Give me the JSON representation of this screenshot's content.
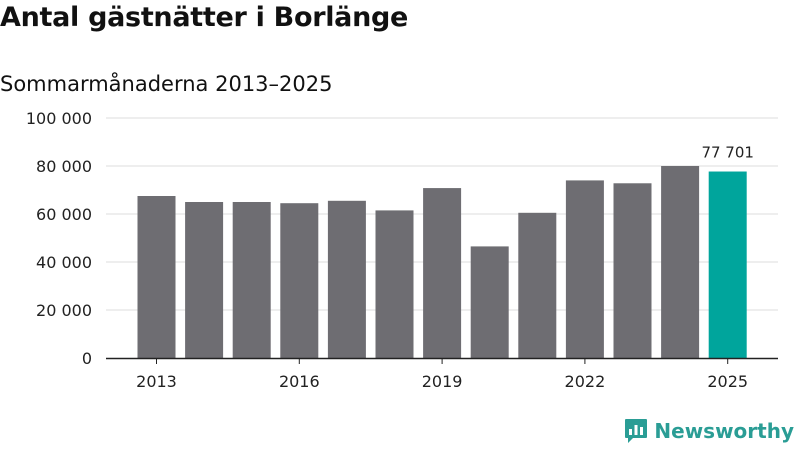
{
  "header": {
    "title": "Antal gästnätter i Borlänge",
    "subtitle": "Sommarmånaderna 2013–2025"
  },
  "brand": {
    "name": "Newsworthy",
    "icon": "newsworthy-logo-icon"
  },
  "colors": {
    "bar": "#6e6d72",
    "highlight": "#00a59c",
    "grid": "#dddddd",
    "axis": "#222222",
    "brand": "#2a9d95"
  },
  "chart_data": {
    "type": "bar",
    "categories": [
      "2013",
      "2014",
      "2015",
      "2016",
      "2017",
      "2018",
      "2019",
      "2020",
      "2021",
      "2022",
      "2023",
      "2024",
      "2025"
    ],
    "values": [
      67500,
      65000,
      65000,
      64500,
      65500,
      61500,
      70800,
      46500,
      60500,
      74000,
      72800,
      80000,
      77701
    ],
    "x_tick_labels": [
      "2013",
      "2016",
      "2019",
      "2022",
      "2025"
    ],
    "y_ticks": [
      0,
      20000,
      40000,
      60000,
      80000,
      100000
    ],
    "y_tick_labels": [
      "0",
      "20 000",
      "40 000",
      "60 000",
      "80 000",
      "100 000"
    ],
    "ylim": [
      0,
      100000
    ],
    "highlight_index": 12,
    "data_labels": [
      {
        "index": 12,
        "text": "77 701"
      }
    ],
    "grid": true,
    "legend": "none",
    "xlabel": "",
    "ylabel": ""
  }
}
